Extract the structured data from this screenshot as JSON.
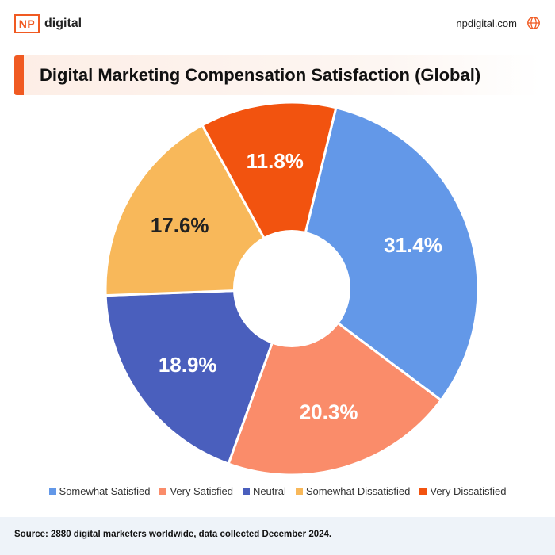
{
  "brand": {
    "logo_mark": "NP",
    "logo_word": "digital",
    "site": "npdigital.com"
  },
  "title": "Digital Marketing Compensation Satisfaction (Global)",
  "chart_data": {
    "type": "pie",
    "donut": true,
    "title": "Digital Marketing Compensation Satisfaction (Global)",
    "categories": [
      "Somewhat Satisfied",
      "Very Satisfied",
      "Neutral",
      "Somewhat Dissatisfied",
      "Very Dissatisfied"
    ],
    "values": [
      31.4,
      20.3,
      18.9,
      17.6,
      11.8
    ],
    "labels": [
      "31.4%",
      "20.3%",
      "18.9%",
      "17.6%",
      "11.8%"
    ],
    "colors": [
      "#6398e8",
      "#fa8c6a",
      "#4a5fbd",
      "#f8b85a",
      "#f2530f"
    ],
    "label_colors": [
      "#ffffff",
      "#ffffff",
      "#ffffff",
      "#222222",
      "#ffffff"
    ],
    "legend_position": "bottom"
  },
  "footer": {
    "source": "Source: 2880 digital marketers worldwide, data collected December 2024."
  }
}
